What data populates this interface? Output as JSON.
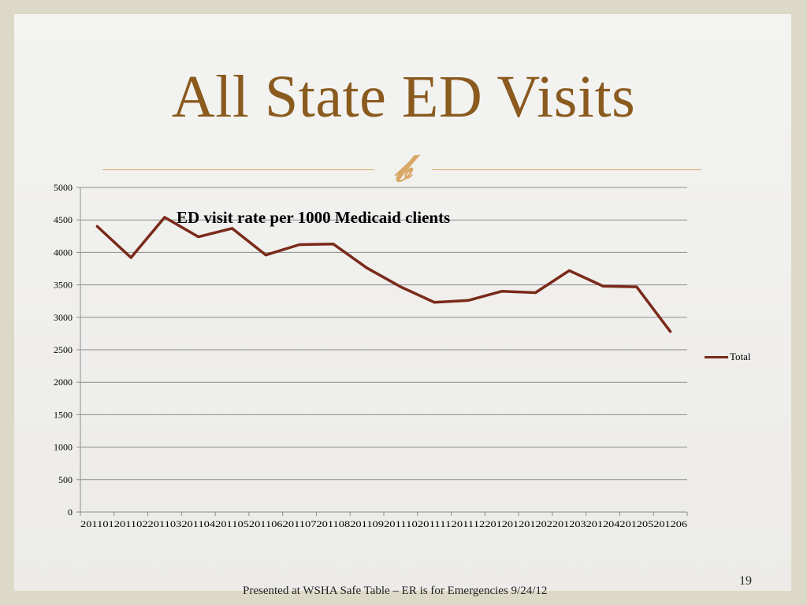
{
  "slide": {
    "title": "All State ED Visits",
    "ornament": "҆",
    "footer": "Presented at WSHA Safe Table – ER is for Emergencies   9/24/12",
    "page_number": "19"
  },
  "colors": {
    "title": "#8a5a1e",
    "rule": "#d9a766",
    "series": "#7a2a1a",
    "grid": "#8c8c8c"
  },
  "chart_data": {
    "type": "line",
    "title": "ED visit rate per 1000 Medicaid clients",
    "xlabel": "",
    "ylabel": "",
    "categories": [
      "201101",
      "201102",
      "201103",
      "201104",
      "201105",
      "201106",
      "201107",
      "201108",
      "201109",
      "201110",
      "201111",
      "201112",
      "201201",
      "201202",
      "201203",
      "201204",
      "201205",
      "201206"
    ],
    "series": [
      {
        "name": "Total",
        "values": [
          4400,
          3920,
          4540,
          4240,
          4370,
          3960,
          4120,
          4130,
          3760,
          3470,
          3230,
          3260,
          3400,
          3380,
          3720,
          3480,
          3470,
          2780
        ]
      }
    ],
    "ylim": [
      0,
      5000
    ],
    "yticks": [
      "0",
      "500",
      "1000",
      "1500",
      "2000",
      "2500",
      "3000",
      "3500",
      "4000",
      "4500",
      "5000"
    ],
    "grid": true,
    "legend": "right"
  }
}
